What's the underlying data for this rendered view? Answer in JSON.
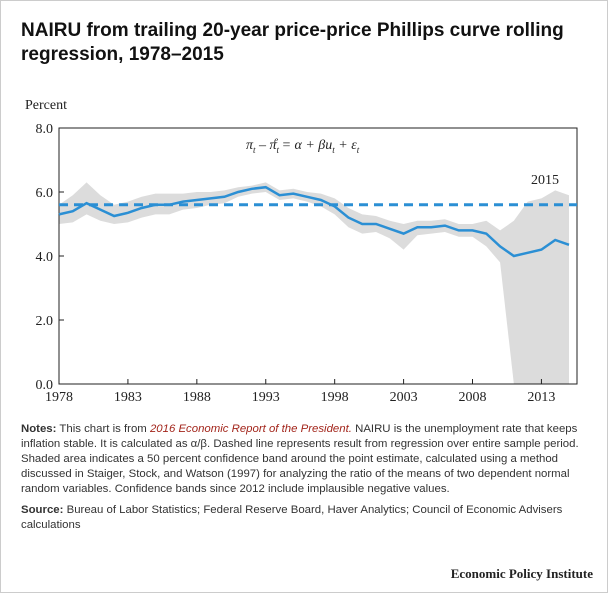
{
  "title": "NAIRU from trailing 20-year price-price Phillips curve rolling regression, 1978–2015",
  "chart_data": {
    "type": "line",
    "y_label": "Percent",
    "x": [
      1978,
      1979,
      1980,
      1981,
      1982,
      1983,
      1984,
      1985,
      1986,
      1987,
      1988,
      1989,
      1990,
      1991,
      1992,
      1993,
      1994,
      1995,
      1996,
      1997,
      1998,
      1999,
      2000,
      2001,
      2002,
      2003,
      2004,
      2005,
      2006,
      2007,
      2008,
      2009,
      2010,
      2011,
      2012,
      2013,
      2014,
      2015
    ],
    "series": [
      {
        "color": "#2b8fd4",
        "values": [
          5.3,
          5.4,
          5.65,
          5.45,
          5.25,
          5.35,
          5.5,
          5.6,
          5.6,
          5.7,
          5.75,
          5.8,
          5.85,
          6.0,
          6.1,
          6.15,
          5.9,
          5.95,
          5.85,
          5.75,
          5.55,
          5.2,
          5.0,
          5.0,
          4.85,
          4.7,
          4.9,
          4.9,
          4.95,
          4.8,
          4.8,
          4.7,
          4.3,
          4.0,
          4.1,
          4.2,
          4.5,
          4.35
        ]
      }
    ],
    "band": {
      "color": "#dcdcdc",
      "upper": [
        5.6,
        5.9,
        6.3,
        5.9,
        5.6,
        5.7,
        5.85,
        5.95,
        5.95,
        5.95,
        6.0,
        6.0,
        6.05,
        6.15,
        6.2,
        6.3,
        6.05,
        6.1,
        6.0,
        5.95,
        5.8,
        5.5,
        5.3,
        5.25,
        5.1,
        5.0,
        5.1,
        5.1,
        5.15,
        5.0,
        5.0,
        5.1,
        4.8,
        5.1,
        5.7,
        5.8,
        6.05,
        5.9
      ],
      "lower": [
        5.0,
        5.05,
        5.3,
        5.1,
        5.0,
        5.05,
        5.2,
        5.3,
        5.3,
        5.45,
        5.5,
        5.6,
        5.65,
        5.85,
        5.95,
        6.0,
        5.75,
        5.8,
        5.7,
        5.55,
        5.3,
        4.9,
        4.7,
        4.75,
        4.55,
        4.2,
        4.65,
        4.7,
        4.75,
        4.6,
        4.6,
        4.3,
        3.8,
        0,
        0,
        0,
        0,
        0
      ]
    },
    "reference_line": {
      "value": 5.6,
      "color": "#2b8fd4",
      "style": "dashed"
    },
    "annotations": {
      "year": "2015",
      "equation": [
        "π",
        "t",
        " – π",
        "t",
        "e",
        " = α + βu",
        "t",
        " + ε",
        "t"
      ]
    },
    "xlim": [
      1978,
      2015
    ],
    "xticks": [
      1978,
      1983,
      1988,
      1993,
      1998,
      2003,
      2008,
      2013
    ],
    "ylim": [
      0,
      8
    ],
    "yticks": [
      {
        "value": 0,
        "label": "0.0"
      },
      {
        "value": 2,
        "label": "2.0"
      },
      {
        "value": 4,
        "label": "4.0"
      },
      {
        "value": 6,
        "label": "6.0"
      },
      {
        "value": 8,
        "label": "8.0"
      }
    ]
  },
  "notes": {
    "label": "Notes:",
    "text1": "This chart is from",
    "link": "2016 Economic Report of the President.",
    "text2": "NAIRU is the unemployment rate that keeps inflation stable. It is calculated as α/β. Dashed line represents result from regression over entire sample period. Shaded area indicates a 50 percent confidence band around the point estimate, calculated using a method discussed in Staiger, Stock, and Watson (1997) for analyzing the ratio of the means of two dependent normal random variables. Confidence bands since 2012 include implausible negative values."
  },
  "source": {
    "label": "Source:",
    "text": "Bureau of Labor Statistics; Federal Reserve Board, Haver Analytics; Council of Economic Advisers calculations"
  },
  "footer": "Economic Policy Institute"
}
